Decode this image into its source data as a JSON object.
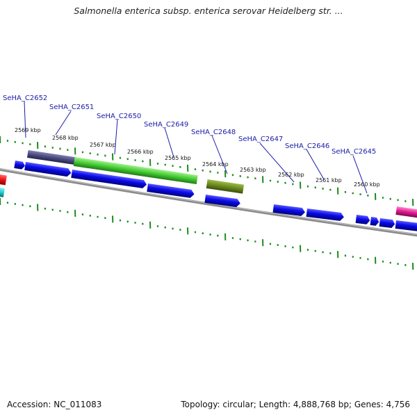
{
  "title": "Salmonella enterica subsp. enterica serovar Heidelberg str. ...",
  "footer": {
    "accession": "Accession: NC_011083",
    "topology": "Topology: circular; Length: 4,888,768 bp; Genes: 4,756"
  },
  "colors": {
    "gene_label": "#1a1aa8",
    "backbone": "#7a7a7a",
    "tick": "#1d8a1d",
    "cds": "#0a0ae8",
    "feature_green": "#44cc33",
    "feature_olive": "#6b8a1e",
    "feature_slate": "#4a4a80",
    "feature_red": "#ee1111",
    "feature_cyan": "#22cccc",
    "feature_magenta": "#e0188f"
  },
  "kbp_ticks": [
    "2569 kbp",
    "2568 kbp",
    "2567 kbp",
    "2566 kbp",
    "2565 kbp",
    "2564 kbp",
    "2563 kbp",
    "2562 kbp",
    "2561 kbp",
    "2560 kbp"
  ],
  "gene_labels": [
    "SeHA_C2652",
    "SeHA_C2651",
    "SeHA_C2650",
    "SeHA_C2649",
    "SeHA_C2648",
    "SeHA_C2647",
    "SeHA_C2646",
    "SeHA_C2645"
  ]
}
